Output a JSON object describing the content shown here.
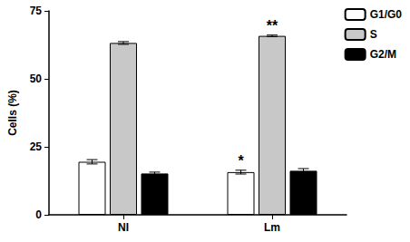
{
  "chart_data": {
    "type": "bar",
    "y_label": "Cells (%)",
    "categories": [
      "NI",
      "Lm"
    ],
    "series": [
      {
        "name": "G1/G0",
        "color": "#ffffff",
        "values": [
          19.5,
          15.7
        ],
        "errors": [
          0.8,
          0.7
        ],
        "significance": [
          null,
          "*"
        ]
      },
      {
        "name": "S",
        "color": "#c8c8c8",
        "values": [
          63.2,
          65.8
        ],
        "errors": [
          0.5,
          0.3
        ],
        "significance": [
          null,
          "**"
        ]
      },
      {
        "name": "G2/M",
        "color": "#000000",
        "values": [
          15.2,
          16.2
        ],
        "errors": [
          0.5,
          0.8
        ],
        "significance": [
          null,
          null
        ]
      }
    ],
    "ylim": [
      0,
      75
    ],
    "yticks": [
      0,
      25,
      50,
      75
    ],
    "grid": false,
    "legend": "top-right"
  }
}
